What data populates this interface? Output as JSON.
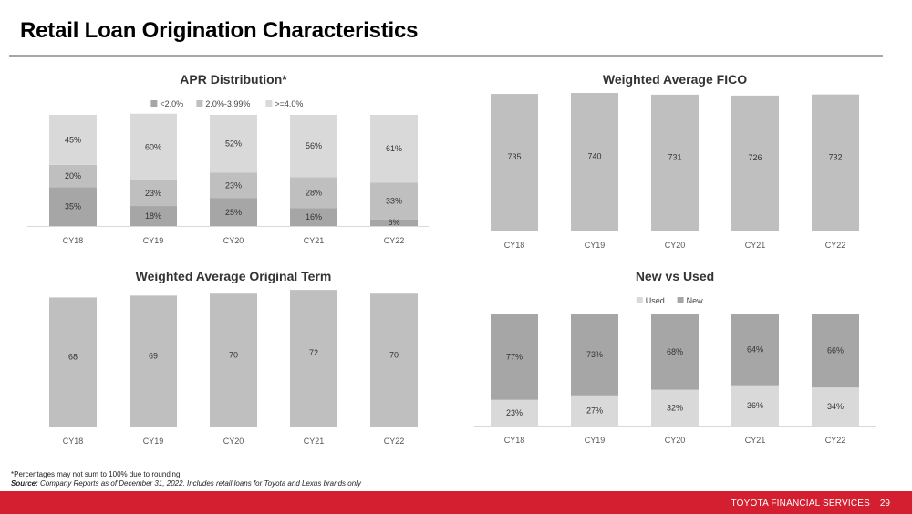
{
  "page": {
    "title": "Retail Loan Origination Characteristics",
    "footnote": "*Percentages may not sum to 100% due to rounding.",
    "source_label": "Source:",
    "source_text": " Company Reports as of December 31, 2022. Includes retail loans for Toyota and Lexus brands only",
    "footer_brand": "TOYOTA FINANCIAL SERVICES",
    "page_number": "29"
  },
  "colors": {
    "dark": "#a6a6a6",
    "mid": "#bfbfbf",
    "light": "#d9d9d9",
    "baseline": "#d9d9d9",
    "footer": "#d41f30"
  },
  "chart_data": [
    {
      "id": "apr",
      "type": "bar",
      "stacked": true,
      "title": "APR Distribution*",
      "legend_position": "top",
      "categories": [
        "CY18",
        "CY19",
        "CY20",
        "CY21",
        "CY22"
      ],
      "series": [
        {
          "name": "<2.0%",
          "color": "#a6a6a6",
          "values": [
            35,
            18,
            25,
            16,
            6
          ],
          "labels": [
            "35%",
            "18%",
            "25%",
            "16%",
            "6%"
          ]
        },
        {
          "name": "2.0%-3.99%",
          "color": "#bfbfbf",
          "values": [
            20,
            23,
            23,
            28,
            33
          ],
          "labels": [
            "20%",
            "23%",
            "23%",
            "28%",
            "33%"
          ]
        },
        {
          "name": ">=4.0%",
          "color": "#d9d9d9",
          "values": [
            45,
            60,
            52,
            56,
            61
          ],
          "labels": [
            "45%",
            "60%",
            "52%",
            "56%",
            "61%"
          ]
        }
      ],
      "ylim": [
        0,
        100
      ]
    },
    {
      "id": "fico",
      "type": "bar",
      "title": "Weighted Average FICO",
      "categories": [
        "CY18",
        "CY19",
        "CY20",
        "CY21",
        "CY22"
      ],
      "series": [
        {
          "color": "#bfbfbf",
          "values": [
            735,
            740,
            731,
            726,
            732
          ],
          "labels": [
            "735",
            "740",
            "731",
            "726",
            "732"
          ]
        }
      ],
      "ylim": [
        0,
        750
      ]
    },
    {
      "id": "term",
      "type": "bar",
      "title": "Weighted Average Original Term",
      "categories": [
        "CY18",
        "CY19",
        "CY20",
        "CY21",
        "CY22"
      ],
      "series": [
        {
          "color": "#bfbfbf",
          "values": [
            68,
            69,
            70,
            72,
            70
          ],
          "labels": [
            "68",
            "69",
            "70",
            "72",
            "70"
          ]
        }
      ],
      "ylim": [
        0,
        73
      ]
    },
    {
      "id": "newused",
      "type": "bar",
      "stacked": true,
      "title": "New vs Used",
      "legend_position": "top",
      "categories": [
        "CY18",
        "CY19",
        "CY20",
        "CY21",
        "CY22"
      ],
      "series": [
        {
          "name": "Used",
          "color": "#d9d9d9",
          "values": [
            23,
            27,
            32,
            36,
            34
          ],
          "labels": [
            "23%",
            "27%",
            "32%",
            "36%",
            "34%"
          ]
        },
        {
          "name": "New",
          "color": "#a6a6a6",
          "values": [
            77,
            73,
            68,
            64,
            66
          ],
          "labels": [
            "77%",
            "73%",
            "68%",
            "64%",
            "66%"
          ]
        }
      ],
      "ylim": [
        0,
        100
      ]
    }
  ]
}
